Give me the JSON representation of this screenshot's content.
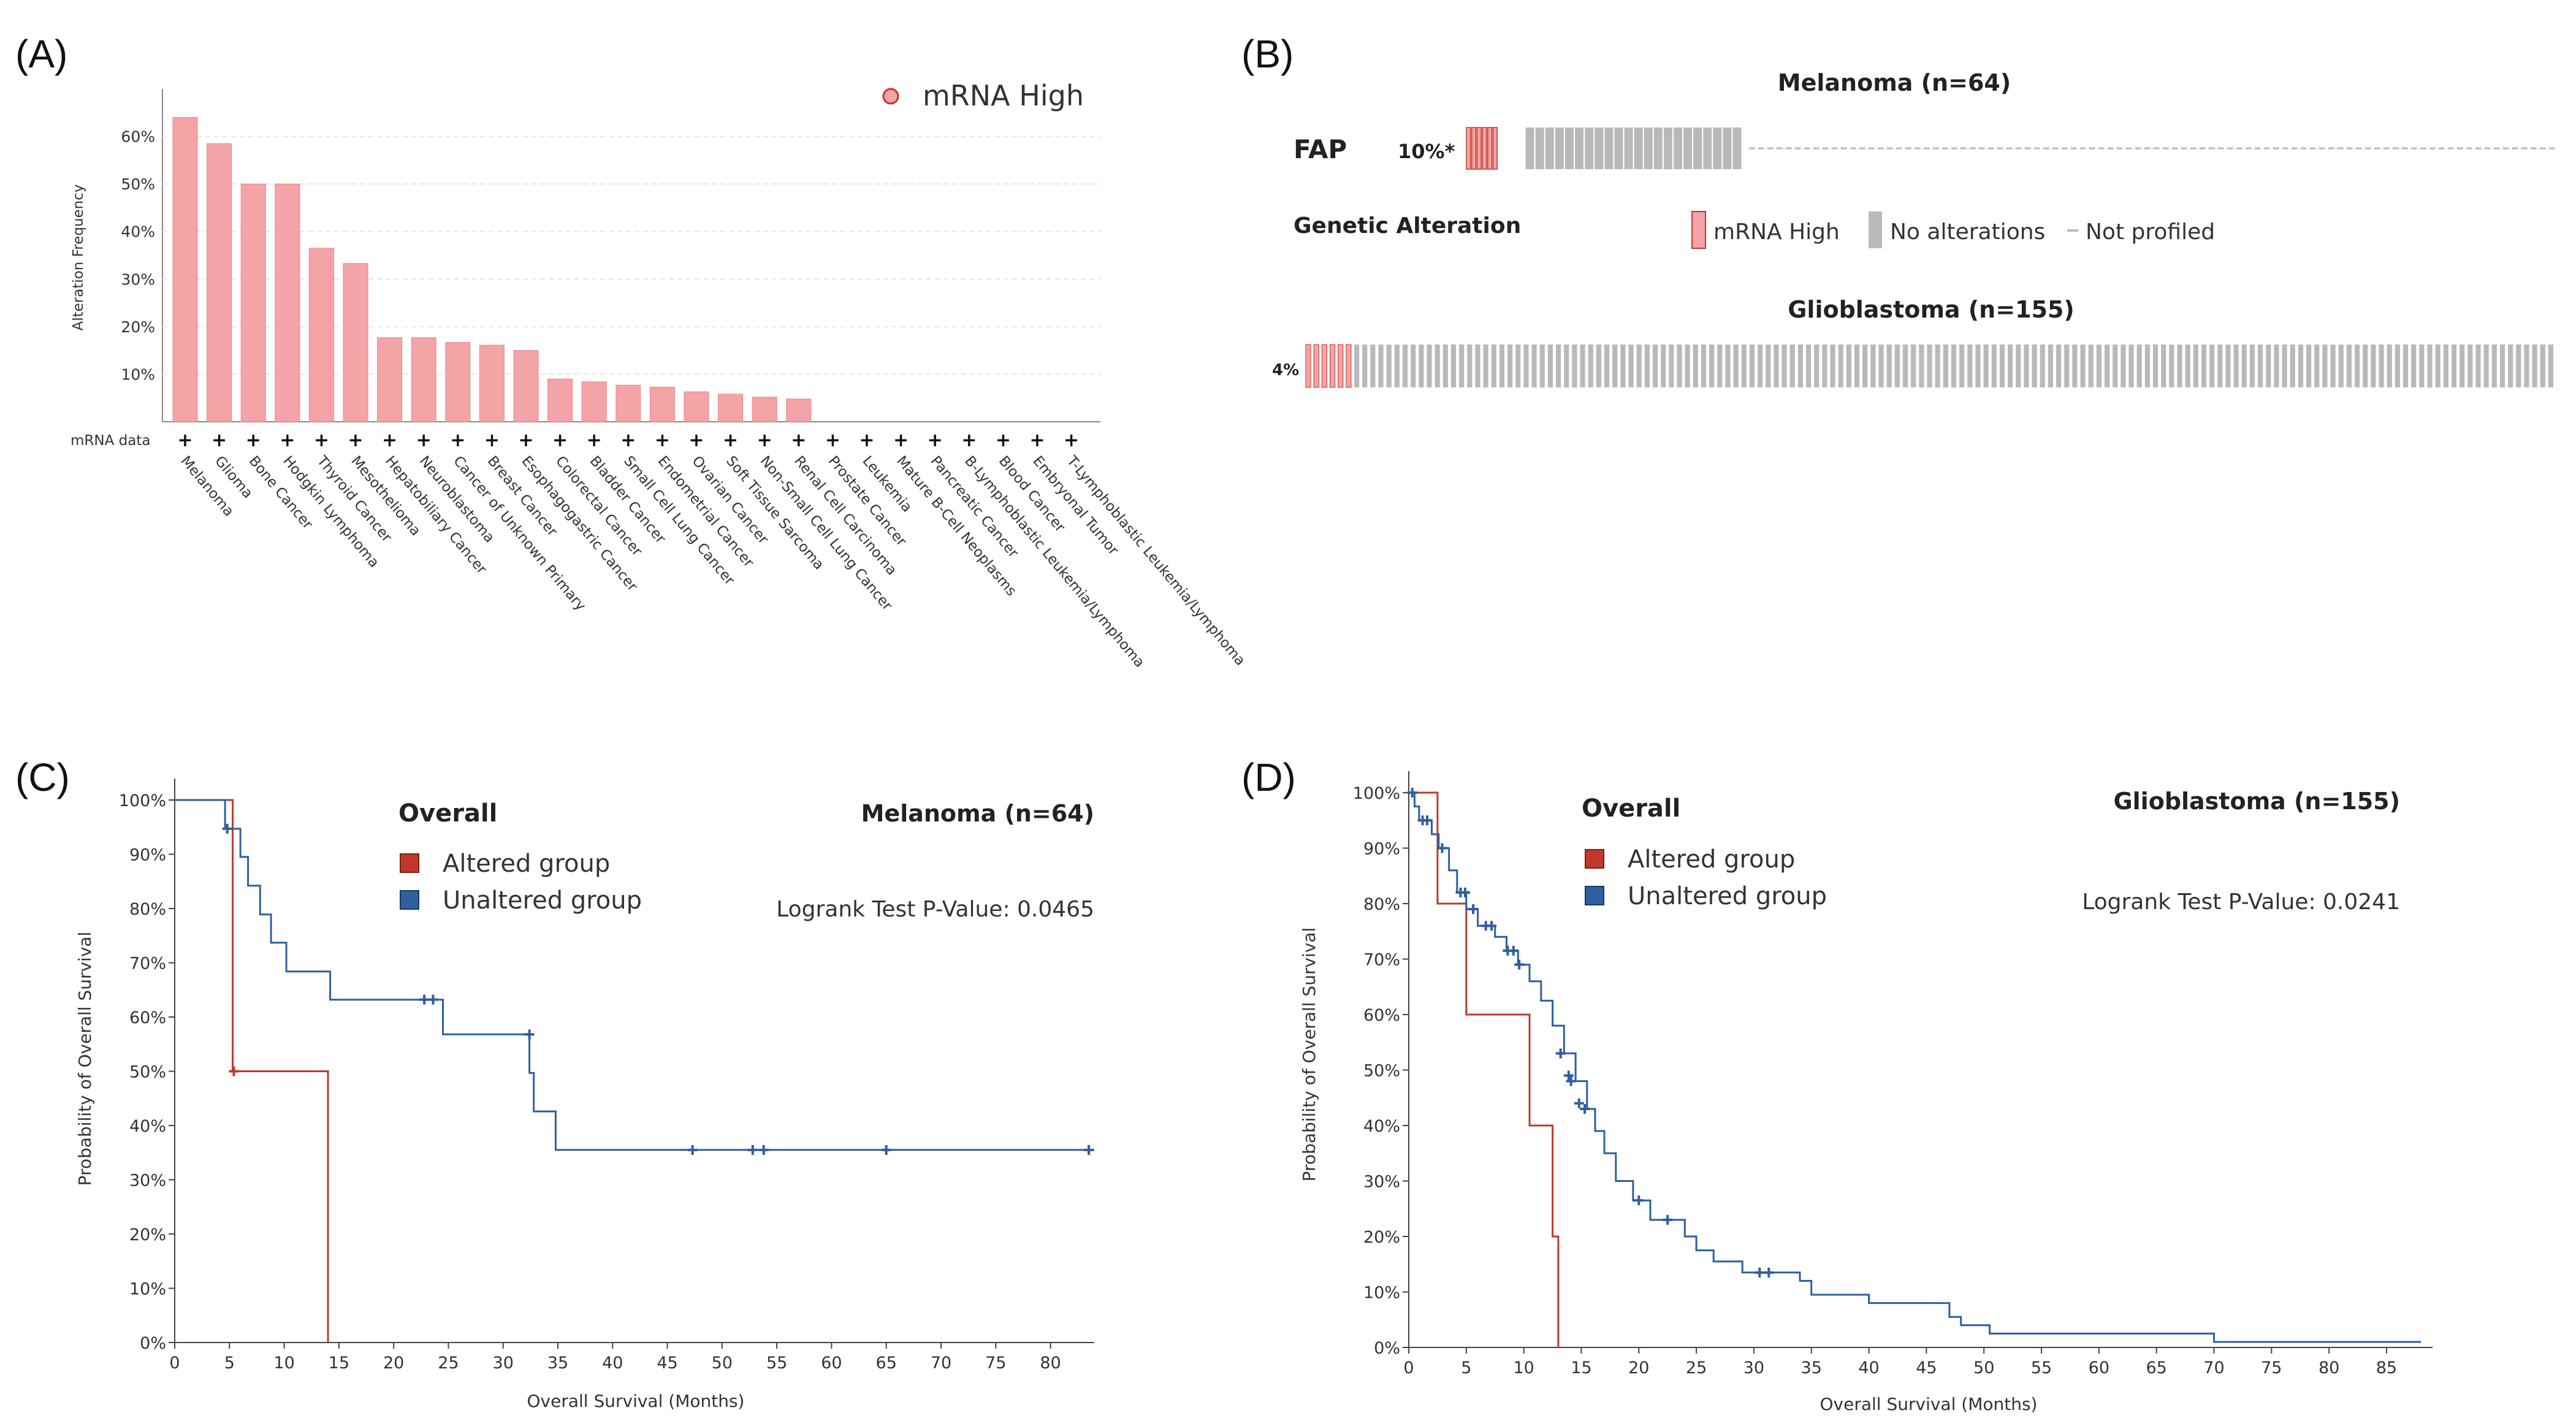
{
  "panel_labels": {
    "a": "(A)",
    "b": "(B)",
    "c": "(C)",
    "d": "(D)"
  },
  "colors": {
    "bar": "#f4a3a6",
    "bar_edge": "#e58a8e",
    "altered": "#c0392b",
    "unaltered": "#2e5f9e",
    "grey_track": "#b9b9b9",
    "grid": "#e6e6e6"
  },
  "chart_data": [
    {
      "id": "A",
      "type": "bar",
      "title": "",
      "ylabel": "Alteration Frequency",
      "ylim": [
        0,
        70
      ],
      "yticks": [
        "10%",
        "20%",
        "30%",
        "40%",
        "50%",
        "60%"
      ],
      "row_label": "mRNA data",
      "legend": "mRNA High",
      "categories": [
        "Melanoma",
        "Glioma",
        "Bone Cancer",
        "Hodgkin Lymphoma",
        "Thyroid Cancer",
        "Mesothelioma",
        "Hepatobiliary Cancer",
        "Neuroblastoma",
        "Cancer of Unknown Primary",
        "Breast Cancer",
        "Esophagogastric Cancer",
        "Colorectal Cancer",
        "Bladder Cancer",
        "Small Cell Lung Cancer",
        "Endometrial Cancer",
        "Ovarian Cancer",
        "Soft Tissue Sarcoma",
        "Non-Small Cell Lung Cancer",
        "Renal Cell Carcinoma",
        "Prostate Cancer",
        "Leukemia",
        "Mature B-Cell Neoplasms",
        "Pancreatic Cancer",
        "B-Lymphoblastic Leukemia/Lymphoma",
        "Blood Cancer",
        "Embryonal Tumor",
        "T-Lymphoblastic Leukemia/Lymphoma"
      ],
      "values": [
        64,
        58.5,
        50,
        50,
        36.5,
        33.3,
        17.7,
        17.7,
        16.7,
        16.1,
        15,
        9,
        8.4,
        7.7,
        7.3,
        6.3,
        5.8,
        5.2,
        4.8,
        0,
        0,
        0,
        0,
        0,
        0,
        0,
        0
      ]
    },
    {
      "id": "B",
      "type": "table",
      "groups": [
        {
          "title": "Melanoma  (n=64)",
          "gene": "FAP",
          "pct": "10%*",
          "altered": 6,
          "unaltered": 58,
          "not_profiled": true
        },
        {
          "title": "Glioblastoma  (n=155)",
          "pct": "4%",
          "altered": 6,
          "unaltered": 149,
          "not_profiled": false
        }
      ],
      "legend_title": "Genetic Alteration",
      "legend": [
        "mRNA High",
        "No alterations",
        "Not profiled"
      ]
    },
    {
      "id": "C",
      "type": "line",
      "title": "Melanoma  (n=64)",
      "legend_title": "Overall",
      "xlabel": "Overall Survival (Months)",
      "ylabel": "Probability of Overall Survival",
      "pvalue": "Logrank Test P-Value: 0.0465",
      "xlim": [
        0,
        84
      ],
      "ylim": [
        0,
        100
      ],
      "xticks": [
        0,
        5,
        10,
        15,
        20,
        25,
        30,
        35,
        40,
        45,
        50,
        55,
        60,
        65,
        70,
        75,
        80
      ],
      "yticks": [
        "0%",
        "10%",
        "20%",
        "30%",
        "40%",
        "50%",
        "60%",
        "70%",
        "80%",
        "90%",
        "100%"
      ],
      "series": [
        {
          "name": "Altered group",
          "color": "#c0392b",
          "steps": [
            [
              0,
              100
            ],
            [
              5.3,
              100
            ],
            [
              5.3,
              50
            ],
            [
              14,
              50
            ],
            [
              14,
              0
            ]
          ],
          "censor": [
            [
              5.4,
              50
            ]
          ]
        },
        {
          "name": "Unaltered group",
          "color": "#2e5f9e",
          "steps": [
            [
              0,
              100
            ],
            [
              4.6,
              100
            ],
            [
              4.6,
              94.7
            ],
            [
              6,
              94.7
            ],
            [
              6,
              89.5
            ],
            [
              6.7,
              89.5
            ],
            [
              6.7,
              84.2
            ],
            [
              7.8,
              84.2
            ],
            [
              7.8,
              78.9
            ],
            [
              8.8,
              78.9
            ],
            [
              8.8,
              73.7
            ],
            [
              10.2,
              73.7
            ],
            [
              10.2,
              68.4
            ],
            [
              14.2,
              68.4
            ],
            [
              14.2,
              63.2
            ],
            [
              24.5,
              63.2
            ],
            [
              24.5,
              56.8
            ],
            [
              32.4,
              56.8
            ],
            [
              32.4,
              49.7
            ],
            [
              32.8,
              49.7
            ],
            [
              32.8,
              42.6
            ],
            [
              34.8,
              42.6
            ],
            [
              34.8,
              35.5
            ],
            [
              84,
              35.5
            ]
          ],
          "censor": [
            [
              4.8,
              94.7
            ],
            [
              22.8,
              63.2
            ],
            [
              23.6,
              63.2
            ],
            [
              32.4,
              56.8
            ],
            [
              47.3,
              35.5
            ],
            [
              52.8,
              35.5
            ],
            [
              53.8,
              35.5
            ],
            [
              65,
              35.5
            ],
            [
              83.5,
              35.5
            ]
          ]
        }
      ]
    },
    {
      "id": "D",
      "type": "line",
      "title": "Glioblastoma  (n=155)",
      "legend_title": "Overall",
      "xlabel": "Overall Survival (Months)",
      "ylabel": "Probability of Overall Survival",
      "pvalue": "Logrank Test P-Value: 0.0241",
      "xlim": [
        0,
        89
      ],
      "ylim": [
        0,
        100
      ],
      "xticks": [
        0,
        5,
        10,
        15,
        20,
        25,
        30,
        35,
        40,
        45,
        50,
        55,
        60,
        65,
        70,
        75,
        80,
        85
      ],
      "yticks": [
        "0%",
        "10%",
        "20%",
        "30%",
        "40%",
        "50%",
        "60%",
        "70%",
        "80%",
        "90%",
        "100%"
      ],
      "series": [
        {
          "name": "Altered group",
          "color": "#c0392b",
          "steps": [
            [
              0,
              100
            ],
            [
              2.5,
              100
            ],
            [
              2.5,
              80
            ],
            [
              5,
              80
            ],
            [
              5,
              60
            ],
            [
              10.5,
              60
            ],
            [
              10.5,
              40
            ],
            [
              12.5,
              40
            ],
            [
              12.5,
              20
            ],
            [
              13,
              20
            ],
            [
              13,
              0
            ]
          ],
          "censor": []
        },
        {
          "name": "Unaltered group",
          "color": "#2e5f9e",
          "steps": [
            [
              0,
              100
            ],
            [
              0.5,
              100
            ],
            [
              0.5,
              97.5
            ],
            [
              0.9,
              97.5
            ],
            [
              0.9,
              95
            ],
            [
              2,
              95
            ],
            [
              2,
              92.5
            ],
            [
              2.6,
              92.5
            ],
            [
              2.6,
              90
            ],
            [
              3.5,
              90
            ],
            [
              3.5,
              86
            ],
            [
              4.2,
              86
            ],
            [
              4.2,
              82
            ],
            [
              5,
              82
            ],
            [
              5,
              79
            ],
            [
              6,
              79
            ],
            [
              6,
              76
            ],
            [
              7.5,
              76
            ],
            [
              7.5,
              74
            ],
            [
              8.5,
              74
            ],
            [
              8.5,
              71.5
            ],
            [
              9.5,
              71.5
            ],
            [
              9.5,
              69
            ],
            [
              10.5,
              69
            ],
            [
              10.5,
              66
            ],
            [
              11.5,
              66
            ],
            [
              11.5,
              62.5
            ],
            [
              12.5,
              62.5
            ],
            [
              12.5,
              58
            ],
            [
              13.5,
              58
            ],
            [
              13.5,
              53
            ],
            [
              14.5,
              53
            ],
            [
              14.5,
              48
            ],
            [
              15.5,
              48
            ],
            [
              15.5,
              43
            ],
            [
              16.2,
              43
            ],
            [
              16.2,
              39
            ],
            [
              17,
              39
            ],
            [
              17,
              35
            ],
            [
              18,
              35
            ],
            [
              18,
              30
            ],
            [
              19.5,
              30
            ],
            [
              19.5,
              26.5
            ],
            [
              21,
              26.5
            ],
            [
              21,
              23
            ],
            [
              24,
              23
            ],
            [
              24,
              20
            ],
            [
              25,
              20
            ],
            [
              25,
              17.5
            ],
            [
              26.5,
              17.5
            ],
            [
              26.5,
              15.5
            ],
            [
              29,
              15.5
            ],
            [
              29,
              13.5
            ],
            [
              34,
              13.5
            ],
            [
              34,
              12
            ],
            [
              35,
              12
            ],
            [
              35,
              9.5
            ],
            [
              40,
              9.5
            ],
            [
              40,
              8
            ],
            [
              47,
              8
            ],
            [
              47,
              5.5
            ],
            [
              48,
              5.5
            ],
            [
              48,
              4
            ],
            [
              50.5,
              4
            ],
            [
              50.5,
              2.5
            ],
            [
              70,
              2.5
            ],
            [
              70,
              1
            ],
            [
              88,
              1
            ]
          ],
          "censor": [
            [
              0.3,
              100
            ],
            [
              1.2,
              95
            ],
            [
              1.6,
              95
            ],
            [
              2.9,
              90
            ],
            [
              4.5,
              82
            ],
            [
              4.9,
              82
            ],
            [
              5.6,
              79
            ],
            [
              6.7,
              76
            ],
            [
              7.2,
              76
            ],
            [
              8.6,
              71.5
            ],
            [
              9.1,
              71.5
            ],
            [
              9.6,
              69
            ],
            [
              13.2,
              53
            ],
            [
              13.9,
              49
            ],
            [
              14.1,
              48
            ],
            [
              14.8,
              44
            ],
            [
              15.3,
              43
            ],
            [
              20,
              26.5
            ],
            [
              22.5,
              23
            ],
            [
              30.5,
              13.5
            ],
            [
              31.3,
              13.5
            ]
          ]
        }
      ]
    }
  ]
}
